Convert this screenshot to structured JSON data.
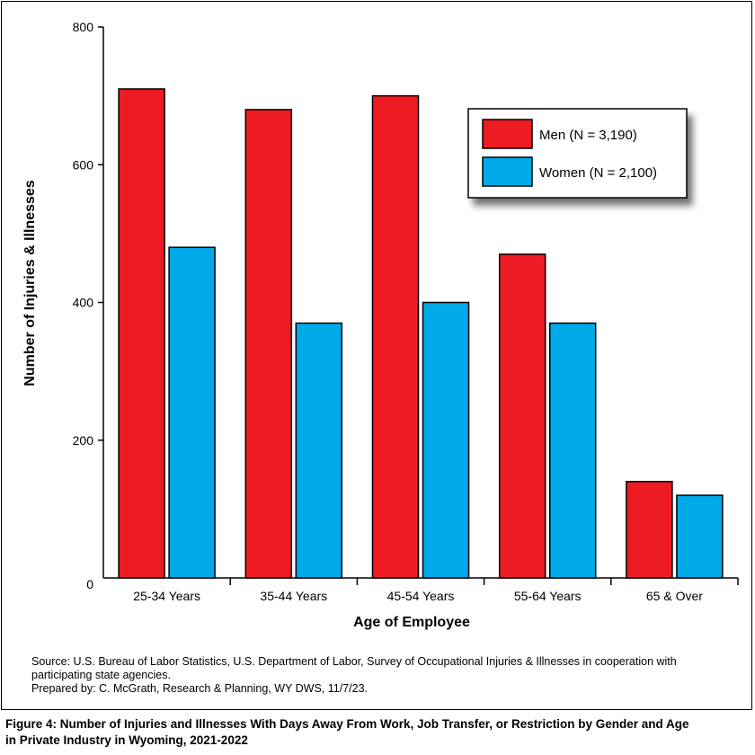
{
  "chart_data": {
    "type": "bar",
    "categories": [
      "25-34 Years",
      "35-44 Years",
      "45-54 Years",
      "55-64 Years",
      "65 & Over"
    ],
    "series": [
      {
        "name": "Men (N = 3,190)",
        "color": "#ed1c24",
        "values": [
          710,
          680,
          700,
          470,
          140
        ]
      },
      {
        "name": "Women (N = 2,100)",
        "color": "#00a9e8",
        "values": [
          480,
          370,
          400,
          370,
          120
        ]
      }
    ],
    "xlabel": "Age of Employee",
    "ylabel": "Number of Injuries & Illnesses",
    "ylim": [
      0,
      800
    ],
    "yticks": [
      0,
      200,
      400,
      600,
      800
    ],
    "grid": false,
    "legend_position": "top-right"
  },
  "source": {
    "line1": "Source: U.S. Bureau of Labor Statistics, U.S. Department of Labor, Survey of Occupational Injuries & Illnesses in cooperation with",
    "line2": "participating state agencies.",
    "line3": "Prepared by: C. McGrath, Research & Planning, WY DWS, 11/7/23."
  },
  "caption": {
    "line1": "Figure 4:  Number of Injuries and Illnesses With Days Away From Work, Job Transfer, or Restriction by Gender and Age",
    "line2": "in Private Industry in Wyoming, 2021-2022"
  }
}
